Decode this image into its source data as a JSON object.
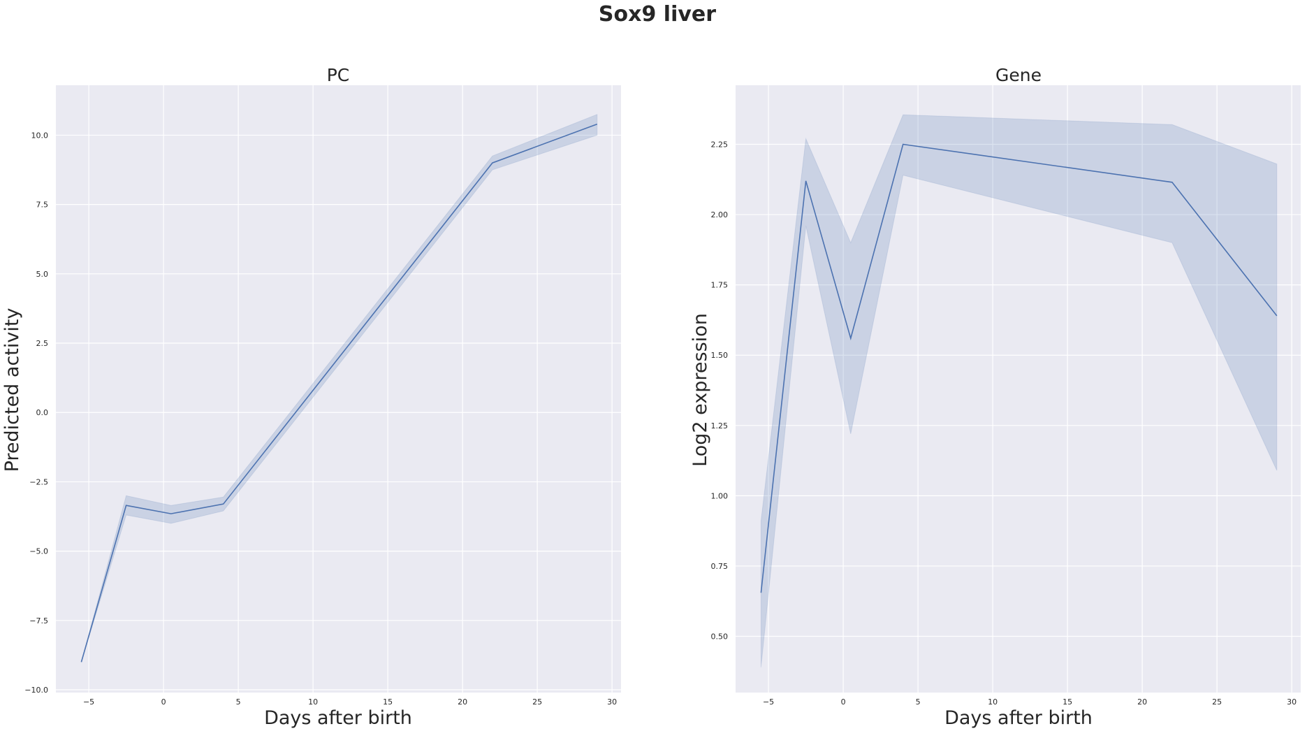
{
  "chart_data": {
    "suptitle": "Sox9 liver",
    "type": "line",
    "panels": [
      {
        "title": "PC",
        "xlabel": "Days after birth",
        "ylabel": "Predicted activity",
        "xlim": [
          -7.2,
          30.6
        ],
        "ylim": [
          -10.1,
          11.8
        ],
        "xticks": [
          -5,
          0,
          5,
          10,
          15,
          20,
          25,
          30
        ],
        "xtick_labels": [
          "−5",
          "0",
          "5",
          "10",
          "15",
          "20",
          "25",
          "30"
        ],
        "yticks": [
          -10,
          -7.5,
          -5,
          -2.5,
          0,
          2.5,
          5,
          7.5,
          10
        ],
        "ytick_labels": [
          "−10.0",
          "−7.5",
          "−5.0",
          "−2.5",
          "0.0",
          "2.5",
          "5.0",
          "7.5",
          "10.0"
        ],
        "grid": true,
        "series": [
          {
            "color": "#4c72b0",
            "x": [
              -5.5,
              -2.5,
              0.5,
              4,
              22,
              29
            ],
            "y": [
              -9.0,
              -3.35,
              -3.65,
              -3.3,
              9.0,
              10.4
            ],
            "ci_low": [
              -9.0,
              -3.7,
              -4.0,
              -3.55,
              8.75,
              10.0
            ],
            "ci_high": [
              -9.0,
              -3.0,
              -3.35,
              -3.05,
              9.25,
              10.75
            ]
          }
        ]
      },
      {
        "title": "Gene",
        "xlabel": "Days after birth",
        "ylabel": "Log2 expression",
        "xlim": [
          -7.2,
          30.6
        ],
        "ylim": [
          0.3,
          2.46
        ],
        "xticks": [
          -5,
          0,
          5,
          10,
          15,
          20,
          25,
          30
        ],
        "xtick_labels": [
          "−5",
          "0",
          "5",
          "10",
          "15",
          "20",
          "25",
          "30"
        ],
        "yticks": [
          0.5,
          0.75,
          1.0,
          1.25,
          1.5,
          1.75,
          2.0,
          2.25
        ],
        "ytick_labels": [
          "0.50",
          "0.75",
          "1.00",
          "1.25",
          "1.50",
          "1.75",
          "2.00",
          "2.25"
        ],
        "grid": true,
        "series": [
          {
            "color": "#4c72b0",
            "x": [
              -5.5,
              -2.5,
              0.5,
              4,
              22,
              29
            ],
            "y": [
              0.655,
              2.12,
              1.56,
              2.25,
              2.115,
              1.64
            ],
            "ci_low": [
              0.39,
              1.96,
              1.22,
              2.14,
              1.9,
              1.09
            ],
            "ci_high": [
              0.91,
              2.27,
              1.9,
              2.355,
              2.32,
              2.18
            ]
          }
        ]
      }
    ]
  }
}
